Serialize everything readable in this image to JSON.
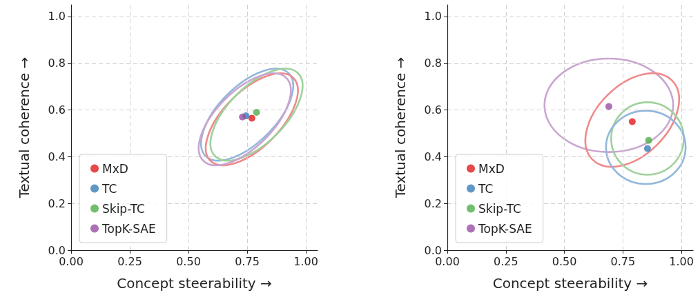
{
  "chart_data": [
    {
      "type": "scatter",
      "xlabel": "Concept steerability →",
      "ylabel": "Textual coherence →",
      "xlim": [
        0,
        1.05
      ],
      "ylim": [
        0,
        1.05
      ],
      "xticks": [
        {
          "value": 0,
          "label": "0.00"
        },
        {
          "value": 0.25,
          "label": "0.25"
        },
        {
          "value": 0.5,
          "label": "0.50"
        },
        {
          "value": 0.75,
          "label": "0.75"
        },
        {
          "value": 1,
          "label": "1.00"
        }
      ],
      "yticks": [
        {
          "value": 0,
          "label": "0.0"
        },
        {
          "value": 0.2,
          "label": "0.2"
        },
        {
          "value": 0.4,
          "label": "0.4"
        },
        {
          "value": 0.6,
          "label": "0.6"
        },
        {
          "value": 0.8,
          "label": "0.8"
        },
        {
          "value": 1,
          "label": "1.0"
        }
      ],
      "grid": true,
      "legend": "bottom left",
      "marker": "circle",
      "series": [
        {
          "name": "MxD",
          "color": "#e41a1c",
          "x": [
            0.77
          ],
          "values": [
            0.565
          ]
        },
        {
          "name": "TC",
          "color": "#377eb8",
          "x": [
            0.745
          ],
          "values": [
            0.575
          ]
        },
        {
          "name": "Skip-TC",
          "color": "#4daf4a",
          "x": [
            0.79
          ],
          "values": [
            0.59
          ]
        },
        {
          "name": "TopK-SAE",
          "color": "#984ea3",
          "x": [
            0.73
          ],
          "values": [
            0.57
          ]
        }
      ]
    },
    {
      "type": "scatter",
      "xlabel": "Concept steerability →",
      "ylabel": "Textual coherence →",
      "xlim": [
        0,
        1.05
      ],
      "ylim": [
        0,
        1.05
      ],
      "xticks": [
        {
          "value": 0,
          "label": "0.00"
        },
        {
          "value": 0.25,
          "label": "0.25"
        },
        {
          "value": 0.5,
          "label": "0.50"
        },
        {
          "value": 0.75,
          "label": "0.75"
        },
        {
          "value": 1,
          "label": "1.00"
        }
      ],
      "yticks": [
        {
          "value": 0,
          "label": "0.0"
        },
        {
          "value": 0.2,
          "label": "0.2"
        },
        {
          "value": 0.4,
          "label": "0.4"
        },
        {
          "value": 0.6,
          "label": "0.6"
        },
        {
          "value": 0.8,
          "label": "0.8"
        },
        {
          "value": 1,
          "label": "1.0"
        }
      ],
      "grid": true,
      "legend": "bottom left",
      "marker": "circle",
      "series": [
        {
          "name": "MxD",
          "color": "#e41a1c",
          "x": [
            0.79
          ],
          "values": [
            0.55
          ]
        },
        {
          "name": "TC",
          "color": "#377eb8",
          "x": [
            0.855
          ],
          "values": [
            0.435
          ]
        },
        {
          "name": "Skip-TC",
          "color": "#4daf4a",
          "x": [
            0.86
          ],
          "values": [
            0.47
          ]
        },
        {
          "name": "TopK-SAE",
          "color": "#984ea3",
          "x": [
            0.69
          ],
          "values": [
            0.615
          ]
        }
      ]
    }
  ]
}
